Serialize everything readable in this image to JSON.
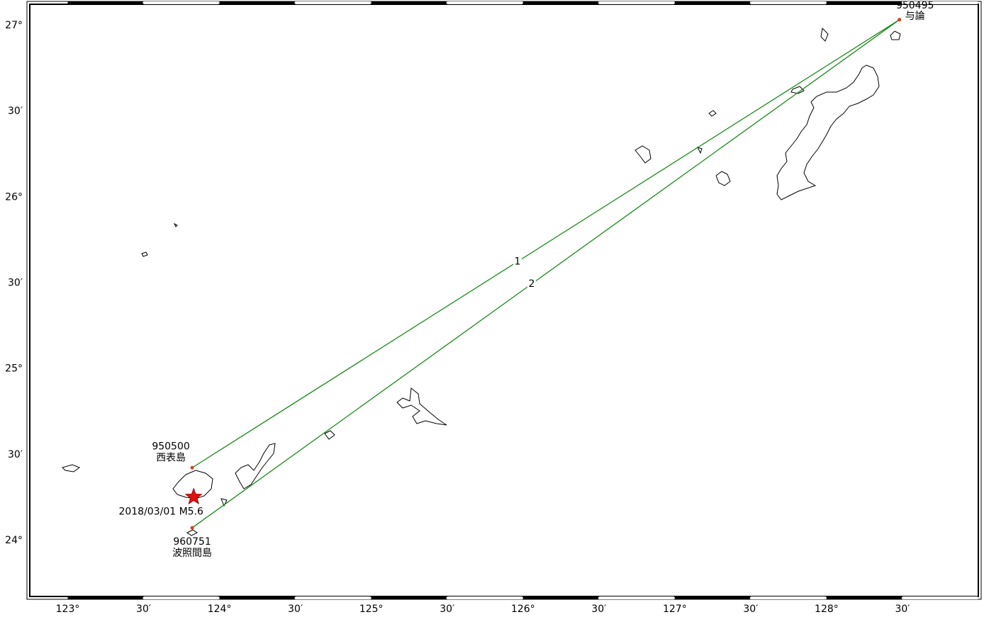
{
  "map": {
    "lon_range": [
      122.75,
      129.0
    ],
    "lat_range": [
      23.67,
      27.12
    ],
    "x_ticks": [
      {
        "lon": 123.0,
        "label": "123°"
      },
      {
        "lon": 123.5,
        "label": "30′"
      },
      {
        "lon": 124.0,
        "label": "124°"
      },
      {
        "lon": 124.5,
        "label": "30′"
      },
      {
        "lon": 125.0,
        "label": "125°"
      },
      {
        "lon": 125.5,
        "label": "30′"
      },
      {
        "lon": 126.0,
        "label": "126°"
      },
      {
        "lon": 126.5,
        "label": "30′"
      },
      {
        "lon": 127.0,
        "label": "127°"
      },
      {
        "lon": 127.5,
        "label": "30′"
      },
      {
        "lon": 128.0,
        "label": "128°"
      },
      {
        "lon": 128.5,
        "label": "30′"
      }
    ],
    "y_ticks": [
      {
        "lat": 27.0,
        "label": "27°"
      },
      {
        "lat": 26.5,
        "label": "30′"
      },
      {
        "lat": 26.0,
        "label": "26°"
      },
      {
        "lat": 25.5,
        "label": "30′"
      },
      {
        "lat": 25.0,
        "label": "25°"
      },
      {
        "lat": 24.5,
        "label": "30′"
      },
      {
        "lat": 24.0,
        "label": "24°"
      }
    ]
  },
  "stations": [
    {
      "id": "950495",
      "name": "与論",
      "lon": 128.48,
      "lat": 27.03
    },
    {
      "id": "950500",
      "name": "西表島",
      "lon": 123.82,
      "lat": 24.42
    },
    {
      "id": "960751",
      "name": "波照間島",
      "lon": 123.82,
      "lat": 24.07
    }
  ],
  "baselines": [
    {
      "label": "1",
      "from": "950495",
      "to": "950500"
    },
    {
      "label": "2",
      "from": "950495",
      "to": "960751"
    }
  ],
  "epicenter": {
    "label": "2018/03/01 M5.6",
    "lon": 123.83,
    "lat": 24.25
  },
  "colors": {
    "baseline": "#1a8a1a",
    "epicenter": "#e01010",
    "station": "#d04020"
  }
}
